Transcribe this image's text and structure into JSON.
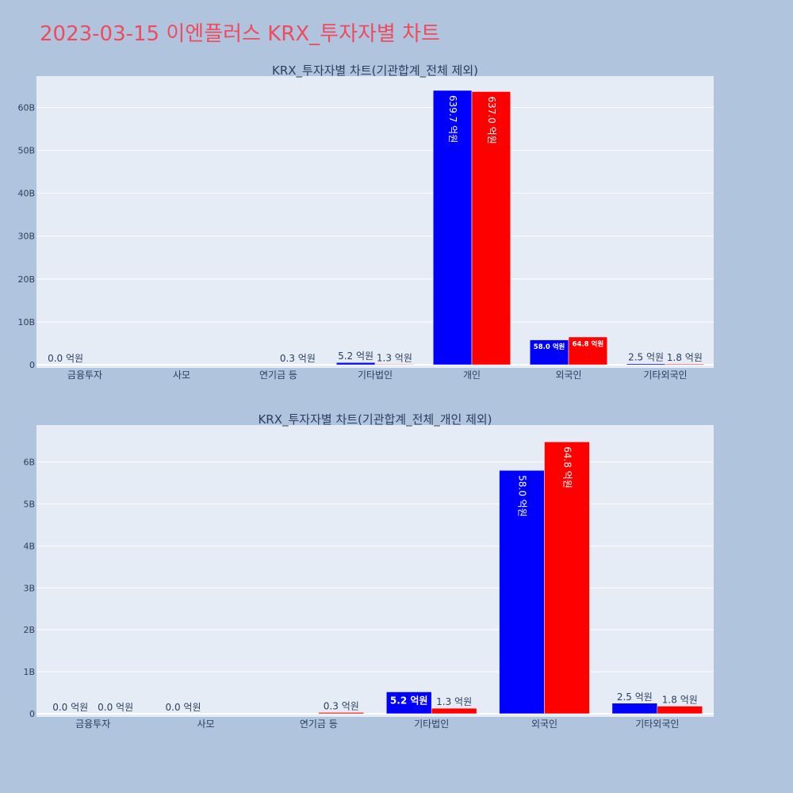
{
  "page": {
    "title": "2023-03-15 이엔플러스 KRX_투자자별 차트"
  },
  "chart_data": [
    {
      "type": "bar",
      "title": "KRX_투자자별 차트(기관합계_전체 제외)",
      "categories": [
        "금융투자",
        "사모",
        "연기금 등",
        "기타법인",
        "개인",
        "외국인",
        "기타외국인"
      ],
      "series": [
        {
          "color": "#0000ff",
          "values": [
            0.0,
            0,
            0,
            520000000,
            63970000000,
            5800000000,
            250000000
          ],
          "labels": [
            "0.0 억원",
            "",
            "",
            "5.2 억원",
            "639.7 억원",
            "58.0 억원",
            "2.5 억원"
          ]
        },
        {
          "color": "#ff0000",
          "values": [
            0,
            0,
            30000000,
            130000000,
            63700000000,
            6480000000,
            180000000
          ],
          "labels": [
            "",
            "",
            "0.3 억원",
            "1.3 억원",
            "637.0 억원",
            "64.8 억원",
            "1.8 억원"
          ]
        }
      ],
      "yticks": [
        0,
        10000000000,
        20000000000,
        30000000000,
        40000000000,
        50000000000,
        60000000000
      ],
      "ytick_labels": [
        "0",
        "10B",
        "20B",
        "30B",
        "40B",
        "50B",
        "60B"
      ],
      "ylim": [
        0,
        67300000000
      ],
      "grid": true
    },
    {
      "type": "bar",
      "title": "KRX_투자자별 차트(기관합계_전체_개인 제외)",
      "categories": [
        "금융투자",
        "사모",
        "연기금 등",
        "기타법인",
        "외국인",
        "기타외국인"
      ],
      "series": [
        {
          "color": "#0000ff",
          "values": [
            0.0,
            0.0,
            0,
            520000000,
            5800000000,
            250000000
          ],
          "labels": [
            "0.0 억원",
            "0.0 억원",
            "",
            "5.2 억원",
            "58.0 억원",
            "2.5 억원"
          ]
        },
        {
          "color": "#ff0000",
          "values": [
            0.0,
            0,
            30000000,
            130000000,
            6480000000,
            180000000
          ],
          "labels": [
            "0.0 억원",
            "",
            "0.3 억원",
            "1.3 억원",
            "64.8 억원",
            "1.8 억원"
          ]
        }
      ],
      "yticks": [
        0,
        1000000000,
        2000000000,
        3000000000,
        4000000000,
        5000000000,
        6000000000
      ],
      "ytick_labels": [
        "0",
        "1B",
        "2B",
        "3B",
        "4B",
        "5B",
        "6B"
      ],
      "ylim": [
        0,
        6880000000
      ],
      "grid": true
    }
  ]
}
